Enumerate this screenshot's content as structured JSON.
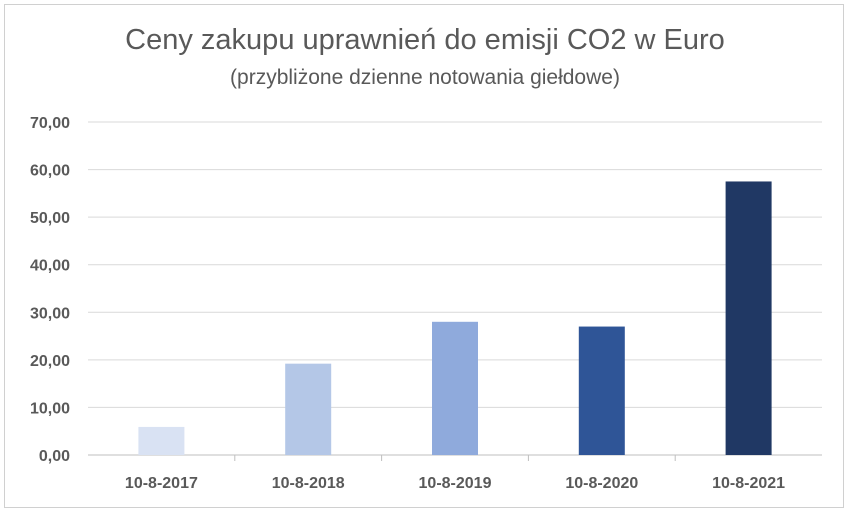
{
  "chart_data": {
    "type": "bar",
    "title": "Ceny zakupu uprawnień do emisji CO2 w Euro",
    "subtitle": "(przybliżone dzienne notowania giełdowe)",
    "categories": [
      "10-8-2017",
      "10-8-2018",
      "10-8-2019",
      "10-8-2020",
      "10-8-2021"
    ],
    "values": [
      5.9,
      19.2,
      28.0,
      27.0,
      57.5
    ],
    "colors": [
      "#d9e2f3",
      "#b4c7e7",
      "#8faadc",
      "#2f5597",
      "#203864"
    ],
    "ylim": [
      0,
      70
    ],
    "yticks": [
      "0,00",
      "10,00",
      "20,00",
      "30,00",
      "40,00",
      "50,00",
      "60,00",
      "70,00"
    ],
    "ytick_values": [
      0,
      10,
      20,
      30,
      40,
      50,
      60,
      70
    ],
    "grid": true,
    "xlabel": "",
    "ylabel": ""
  }
}
